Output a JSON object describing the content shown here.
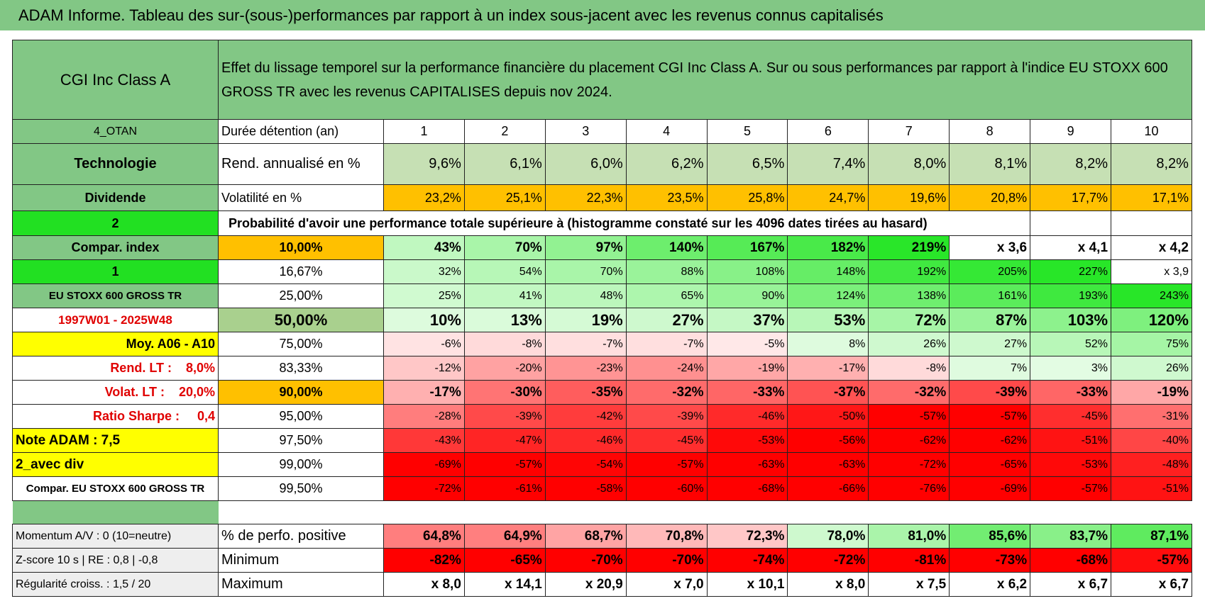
{
  "header": {
    "title": "ADAM Informe. Tableau des sur-(sous-)performances par rapport à un index sous-jacent avec les revenus connus capitalisés",
    "name": "CGI Inc Class A",
    "description": "Effet du lissage temporel sur la performance financière du placement CGI Inc Class A. Sur ou sous performances par rapport à l'indice EU STOXX 600 GROSS TR avec les revenus CAPITALISES depuis nov 2024."
  },
  "top_rows": [
    [
      "4_OTAN",
      "Durée détention (an)",
      "1",
      "2",
      "3",
      "4",
      "5",
      "6",
      "7",
      "8",
      "9",
      "10"
    ],
    [
      "Technologie",
      "Rend. annualisé en %",
      "9,6%",
      "6,1%",
      "6,0%",
      "6,2%",
      "6,5%",
      "7,4%",
      "8,0%",
      "8,1%",
      "8,2%",
      "8,2%"
    ],
    [
      "Dividende",
      "Volatilité en %",
      "23,2%",
      "25,1%",
      "22,3%",
      "23,5%",
      "25,8%",
      "24,7%",
      "19,6%",
      "20,8%",
      "17,7%",
      "17,1%"
    ],
    [
      "2",
      "Probabilité d'avoir une performance totale supérieure à (histogramme constaté sur les 4096 dates tirées au hasard)"
    ]
  ],
  "quantile_rows": [
    [
      "Compar. index",
      "10,00%",
      "43%",
      "70%",
      "97%",
      "140%",
      "167%",
      "182%",
      "219%",
      "x 3,6",
      "x 4,1",
      "x 4,2"
    ],
    [
      "1",
      "16,67%",
      "32%",
      "54%",
      "70%",
      "88%",
      "108%",
      "148%",
      "192%",
      "205%",
      "227%",
      "x 3,9"
    ],
    [
      "EU STOXX 600 GROSS TR",
      "25,00%",
      "25%",
      "41%",
      "48%",
      "65%",
      "90%",
      "124%",
      "138%",
      "161%",
      "193%",
      "243%"
    ],
    [
      "1997W01 - 2025W48",
      "50,00%",
      "10%",
      "13%",
      "19%",
      "27%",
      "37%",
      "53%",
      "72%",
      "87%",
      "103%",
      "120%"
    ],
    [
      "Moy. A06 - A10",
      "75,00%",
      "-6%",
      "-8%",
      "-7%",
      "-7%",
      "-5%",
      "8%",
      "26%",
      "27%",
      "52%",
      "75%"
    ],
    [
      "Rend. LT :    8,0%",
      "83,33%",
      "-12%",
      "-20%",
      "-23%",
      "-24%",
      "-19%",
      "-17%",
      "-8%",
      "7%",
      "3%",
      "26%"
    ],
    [
      "Volat. LT :    20,0%",
      "90,00%",
      "-17%",
      "-30%",
      "-35%",
      "-32%",
      "-33%",
      "-37%",
      "-32%",
      "-39%",
      "-33%",
      "-19%"
    ],
    [
      "Ratio Sharpe :     0,4",
      "95,00%",
      "-28%",
      "-39%",
      "-42%",
      "-39%",
      "-46%",
      "-50%",
      "-57%",
      "-57%",
      "-45%",
      "-31%"
    ],
    [
      "Note ADAM : 7,5",
      "97,50%",
      "-43%",
      "-47%",
      "-46%",
      "-45%",
      "-53%",
      "-56%",
      "-62%",
      "-62%",
      "-51%",
      "-40%"
    ],
    [
      "2_avec div",
      "99,00%",
      "-69%",
      "-57%",
      "-54%",
      "-57%",
      "-63%",
      "-63%",
      "-72%",
      "-65%",
      "-53%",
      "-48%"
    ],
    [
      "Compar. EU STOXX 600 GROSS TR",
      "99,50%",
      "-72%",
      "-61%",
      "-58%",
      "-60%",
      "-68%",
      "-66%",
      "-76%",
      "-69%",
      "-57%",
      "-51%"
    ]
  ],
  "summary_rows": [
    [
      "Momentum A/V : 0 (10=neutre)",
      "% de perfo. positive",
      "64,8%",
      "64,9%",
      "68,7%",
      "70,8%",
      "72,3%",
      "78,0%",
      "81,0%",
      "85,6%",
      "83,7%",
      "87,1%"
    ],
    [
      "Z-score 10 s | RE : 0,8 | -0,8",
      "Minimum",
      "-82%",
      "-65%",
      "-70%",
      "-70%",
      "-74%",
      "-72%",
      "-81%",
      "-73%",
      "-68%",
      "-57%"
    ],
    [
      "Régularité croiss. : 1,5 / 20",
      "Maximum",
      "x 8,0",
      "x 14,1",
      "x 20,9",
      "x 7,0",
      "x 10,1",
      "x 8,0",
      "x 7,5",
      "x 6,2",
      "x 6,7",
      "x 6,7"
    ]
  ]
}
